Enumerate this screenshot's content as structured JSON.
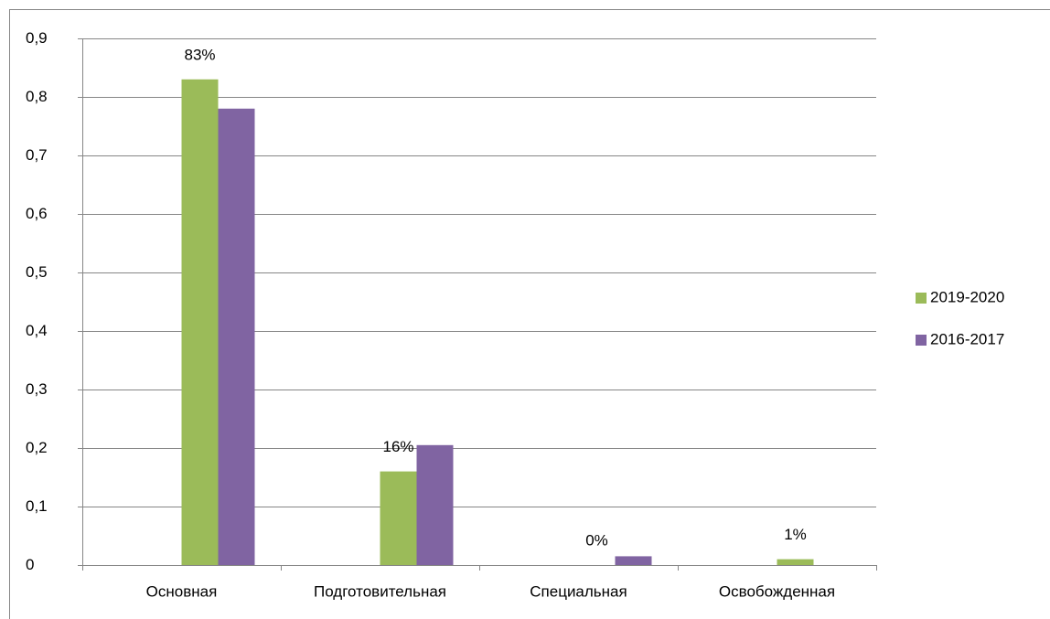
{
  "chart_data": {
    "type": "bar",
    "categories": [
      "Основная",
      "Подготовительная",
      "Специальная",
      "Освобожденная"
    ],
    "series": [
      {
        "name": "2019-2020",
        "color": "#9bbb59",
        "values": [
          0.83,
          0.16,
          0,
          0.01
        ],
        "value_labels": [
          "83%",
          "16%",
          "0%",
          "1%"
        ]
      },
      {
        "name": "2016-2017",
        "color": "#8064a2",
        "values": [
          0.78,
          0.205,
          0.015,
          0
        ]
      }
    ],
    "ylim": [
      0,
      0.9
    ],
    "yticks": [
      0,
      {
        "value": 0.1,
        "label": "0,1"
      },
      {
        "value": 0.2,
        "label": "0,2"
      },
      {
        "value": 0.3,
        "label": "0,3"
      },
      {
        "value": 0.4,
        "label": "0,4"
      },
      {
        "value": 0.5,
        "label": "0,5"
      },
      {
        "value": 0.6,
        "label": "0,6"
      },
      {
        "value": 0.7,
        "label": "0,7"
      },
      {
        "value": 0.8,
        "label": "0,8"
      },
      {
        "value": 0.9,
        "label": "0,9"
      }
    ],
    "grid": true,
    "legend": "right"
  }
}
